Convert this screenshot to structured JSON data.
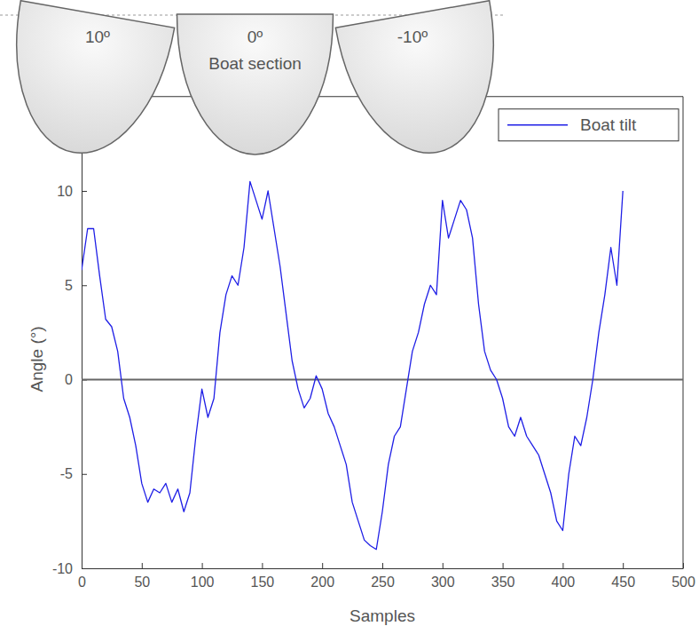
{
  "chart_data": {
    "type": "line",
    "x_label": "Samples",
    "y_label": "Angle (°)",
    "xlim": [
      0,
      500
    ],
    "xticks": [
      0,
      50,
      100,
      150,
      200,
      250,
      300,
      350,
      400,
      450,
      500
    ],
    "ylim": [
      -10,
      15
    ],
    "yticks": [
      -10,
      -5,
      0,
      5,
      10
    ],
    "hlines": [
      0
    ],
    "legend": "upper right",
    "x": [
      0,
      5,
      10,
      15,
      20,
      25,
      30,
      35,
      40,
      45,
      50,
      55,
      60,
      65,
      70,
      75,
      80,
      85,
      90,
      95,
      100,
      105,
      110,
      115,
      120,
      125,
      130,
      135,
      140,
      145,
      150,
      155,
      160,
      165,
      170,
      175,
      180,
      185,
      190,
      195,
      200,
      205,
      210,
      215,
      220,
      225,
      230,
      235,
      240,
      245,
      250,
      255,
      260,
      265,
      270,
      275,
      280,
      285,
      290,
      295,
      300,
      305,
      310,
      315,
      320,
      325,
      330,
      335,
      340,
      345,
      350,
      355,
      360,
      365,
      370,
      375,
      380,
      385,
      390,
      395,
      400,
      405,
      410,
      415,
      420,
      425,
      430,
      435,
      440,
      445,
      450
    ],
    "series": [
      {
        "name": "Boat tilt",
        "color": "#1f1fe6",
        "values": [
          5.8,
          8.0,
          8.0,
          5.5,
          3.2,
          2.8,
          1.5,
          -1.0,
          -2.0,
          -3.5,
          -5.5,
          -6.5,
          -5.8,
          -6.0,
          -5.5,
          -6.5,
          -5.8,
          -7.0,
          -6.0,
          -3.0,
          -0.5,
          -2.0,
          -1.0,
          2.5,
          4.5,
          5.5,
          5.0,
          7.0,
          10.5,
          9.5,
          8.5,
          10.0,
          8.0,
          6.0,
          3.5,
          1.0,
          -0.5,
          -1.5,
          -1.0,
          0.2,
          -0.5,
          -1.8,
          -2.5,
          -3.5,
          -4.5,
          -6.5,
          -7.5,
          -8.5,
          -8.8,
          -9.0,
          -7.0,
          -4.5,
          -3.0,
          -2.5,
          -0.5,
          1.5,
          2.5,
          4.0,
          5.0,
          4.5,
          9.5,
          7.5,
          8.5,
          9.5,
          9.0,
          7.5,
          4.0,
          1.5,
          0.5,
          0.0,
          -1.0,
          -2.5,
          -3.0,
          -2.0,
          -3.0,
          -3.5,
          -4.0,
          -5.0,
          -6.0,
          -7.5,
          -8.0,
          -5.0,
          -3.0,
          -3.5,
          -2.0,
          0.0,
          2.5,
          4.5,
          7.0,
          5.0,
          10.0
        ]
      }
    ],
    "annotations": [
      {
        "text": "10º",
        "angle": 10
      },
      {
        "text": "0º",
        "angle": 0,
        "caption": "Boat section"
      },
      {
        "text": "-10º",
        "angle": -10
      }
    ]
  }
}
